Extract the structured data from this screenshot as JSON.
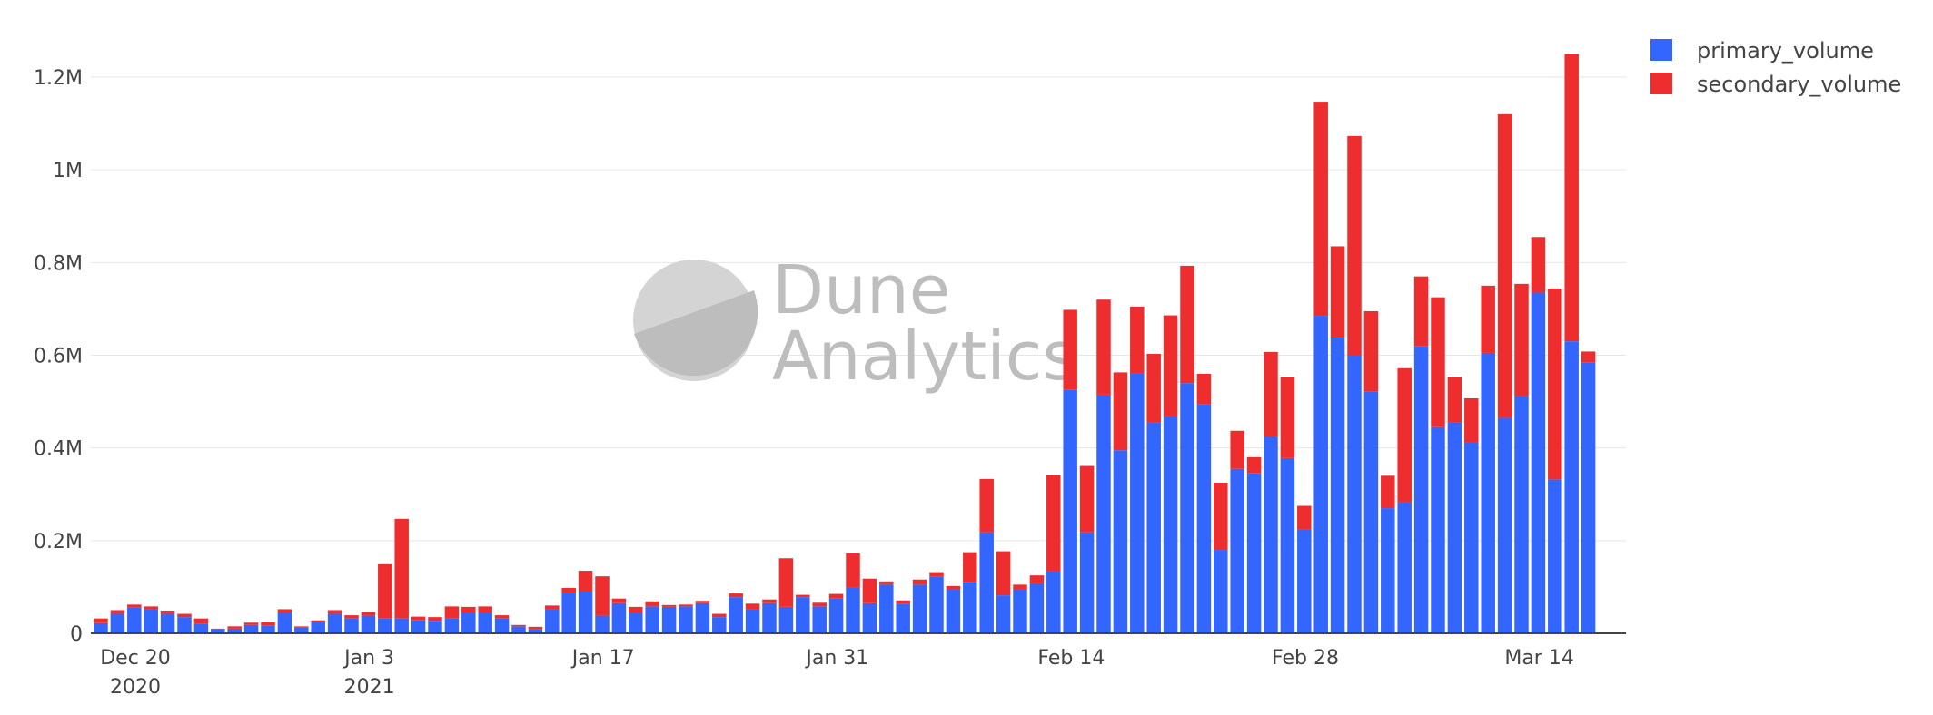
{
  "watermark": {
    "line1": "Dune",
    "line2": "Analytics"
  },
  "colors": {
    "primary": "#3366ff",
    "secondary": "#ee2e2e",
    "grid": "#e6e6e6",
    "axis": "#444444",
    "watermark": "#bdbdbd"
  },
  "chart_data": {
    "type": "bar",
    "stacked": true,
    "title": "",
    "xlabel": "",
    "ylabel": "",
    "ylim": [
      0,
      1260000
    ],
    "grid": true,
    "legend_position": "top-right",
    "y_ticks": [
      {
        "value": 0,
        "label": "0"
      },
      {
        "value": 200000,
        "label": "0.2M"
      },
      {
        "value": 400000,
        "label": "0.4M"
      },
      {
        "value": 600000,
        "label": "0.6M"
      },
      {
        "value": 800000,
        "label": "0.8M"
      },
      {
        "value": 1000000,
        "label": "1M"
      },
      {
        "value": 1200000,
        "label": "1.2M"
      }
    ],
    "x_ticks": [
      {
        "date": "2020-12-20",
        "line1": "Dec 20",
        "line2": "2020"
      },
      {
        "date": "2021-01-03",
        "line1": "Jan 3",
        "line2": "2021"
      },
      {
        "date": "2021-01-17",
        "line1": "Jan 17",
        "line2": ""
      },
      {
        "date": "2021-01-31",
        "line1": "Jan 31",
        "line2": ""
      },
      {
        "date": "2021-02-14",
        "line1": "Feb 14",
        "line2": ""
      },
      {
        "date": "2021-02-28",
        "line1": "Feb 28",
        "line2": ""
      },
      {
        "date": "2021-03-14",
        "line1": "Mar 14",
        "line2": ""
      }
    ],
    "x": [
      "2020-12-20",
      "2020-12-21",
      "2020-12-22",
      "2020-12-23",
      "2020-12-24",
      "2020-12-25",
      "2020-12-26",
      "2020-12-27",
      "2020-12-28",
      "2020-12-29",
      "2020-12-30",
      "2020-12-31",
      "2021-01-01",
      "2021-01-02",
      "2021-01-03",
      "2021-01-04",
      "2021-01-05",
      "2021-01-06",
      "2021-01-07",
      "2021-01-08",
      "2021-01-09",
      "2021-01-10",
      "2021-01-11",
      "2021-01-12",
      "2021-01-13",
      "2021-01-14",
      "2021-01-15",
      "2021-01-16",
      "2021-01-17",
      "2021-01-18",
      "2021-01-19",
      "2021-01-20",
      "2021-01-21",
      "2021-01-22",
      "2021-01-23",
      "2021-01-24",
      "2021-01-25",
      "2021-01-26",
      "2021-01-27",
      "2021-01-28",
      "2021-01-29",
      "2021-01-30",
      "2021-01-31",
      "2021-02-01",
      "2021-02-02",
      "2021-02-03",
      "2021-02-04",
      "2021-02-05",
      "2021-02-06",
      "2021-02-07",
      "2021-02-08",
      "2021-02-09",
      "2021-02-10",
      "2021-02-11",
      "2021-02-12",
      "2021-02-13",
      "2021-02-14",
      "2021-02-15",
      "2021-02-16",
      "2021-02-17",
      "2021-02-18",
      "2021-02-19",
      "2021-02-20",
      "2021-02-21",
      "2021-02-22",
      "2021-02-23",
      "2021-02-24",
      "2021-02-25",
      "2021-02-26",
      "2021-02-27",
      "2021-02-28",
      "2021-03-01",
      "2021-03-02",
      "2021-03-03",
      "2021-03-04",
      "2021-03-05",
      "2021-03-06",
      "2021-03-07",
      "2021-03-08",
      "2021-03-09",
      "2021-03-10",
      "2021-03-11",
      "2021-03-12",
      "2021-03-13",
      "2021-03-14",
      "2021-03-15",
      "2021-03-16",
      "2021-03-17",
      "2021-03-18",
      "2021-03-19"
    ],
    "series": [
      {
        "name": "primary_volume",
        "color": "#3366ff",
        "values": [
          22000,
          42000,
          55000,
          52000,
          42000,
          35000,
          20000,
          8000,
          10000,
          18000,
          17000,
          45000,
          12000,
          25000,
          42000,
          32000,
          38000,
          32000,
          32000,
          28000,
          27000,
          33000,
          45000,
          45000,
          32000,
          15000,
          8000,
          52000,
          88000,
          92000,
          38000,
          65000,
          45000,
          58000,
          57000,
          58000,
          65000,
          35000,
          78000,
          52000,
          65000,
          57000,
          78000,
          58000,
          75000,
          98000,
          65000,
          105000,
          63000,
          105000,
          122000,
          95000,
          110000,
          218000,
          82000,
          95000,
          108000,
          135000,
          525000,
          218000,
          515000,
          395000,
          560000,
          455000,
          468000,
          540000,
          495000,
          180000,
          355000,
          345000,
          425000,
          378000,
          225000,
          685000,
          638000,
          600000,
          522000,
          270000,
          282000,
          620000,
          445000,
          455000,
          412000,
          605000,
          465000,
          512000,
          735000,
          332000,
          630000,
          585000
        ]
      },
      {
        "name": "secondary_volume",
        "color": "#ee2e2e",
        "values": [
          10000,
          8000,
          7000,
          6000,
          7000,
          7000,
          12000,
          2000,
          5000,
          5000,
          7000,
          7000,
          3000,
          3000,
          8000,
          7000,
          8000,
          117000,
          215000,
          8000,
          8000,
          25000,
          12000,
          13000,
          7000,
          3000,
          6000,
          8000,
          10000,
          43000,
          85000,
          10000,
          12000,
          11000,
          4000,
          4000,
          5000,
          7000,
          8000,
          12000,
          8000,
          105000,
          5000,
          8000,
          10000,
          75000,
          53000,
          7000,
          8000,
          11000,
          10000,
          7000,
          65000,
          115000,
          95000,
          10000,
          17000,
          207000,
          173000,
          143000,
          205000,
          168000,
          145000,
          148000,
          218000,
          253000,
          65000,
          145000,
          82000,
          35000,
          182000,
          175000,
          50000,
          462000,
          197000,
          473000,
          173000,
          70000,
          290000,
          150000,
          280000,
          98000,
          95000,
          145000,
          655000,
          242000,
          120000,
          412000,
          620000,
          23000
        ]
      }
    ]
  }
}
